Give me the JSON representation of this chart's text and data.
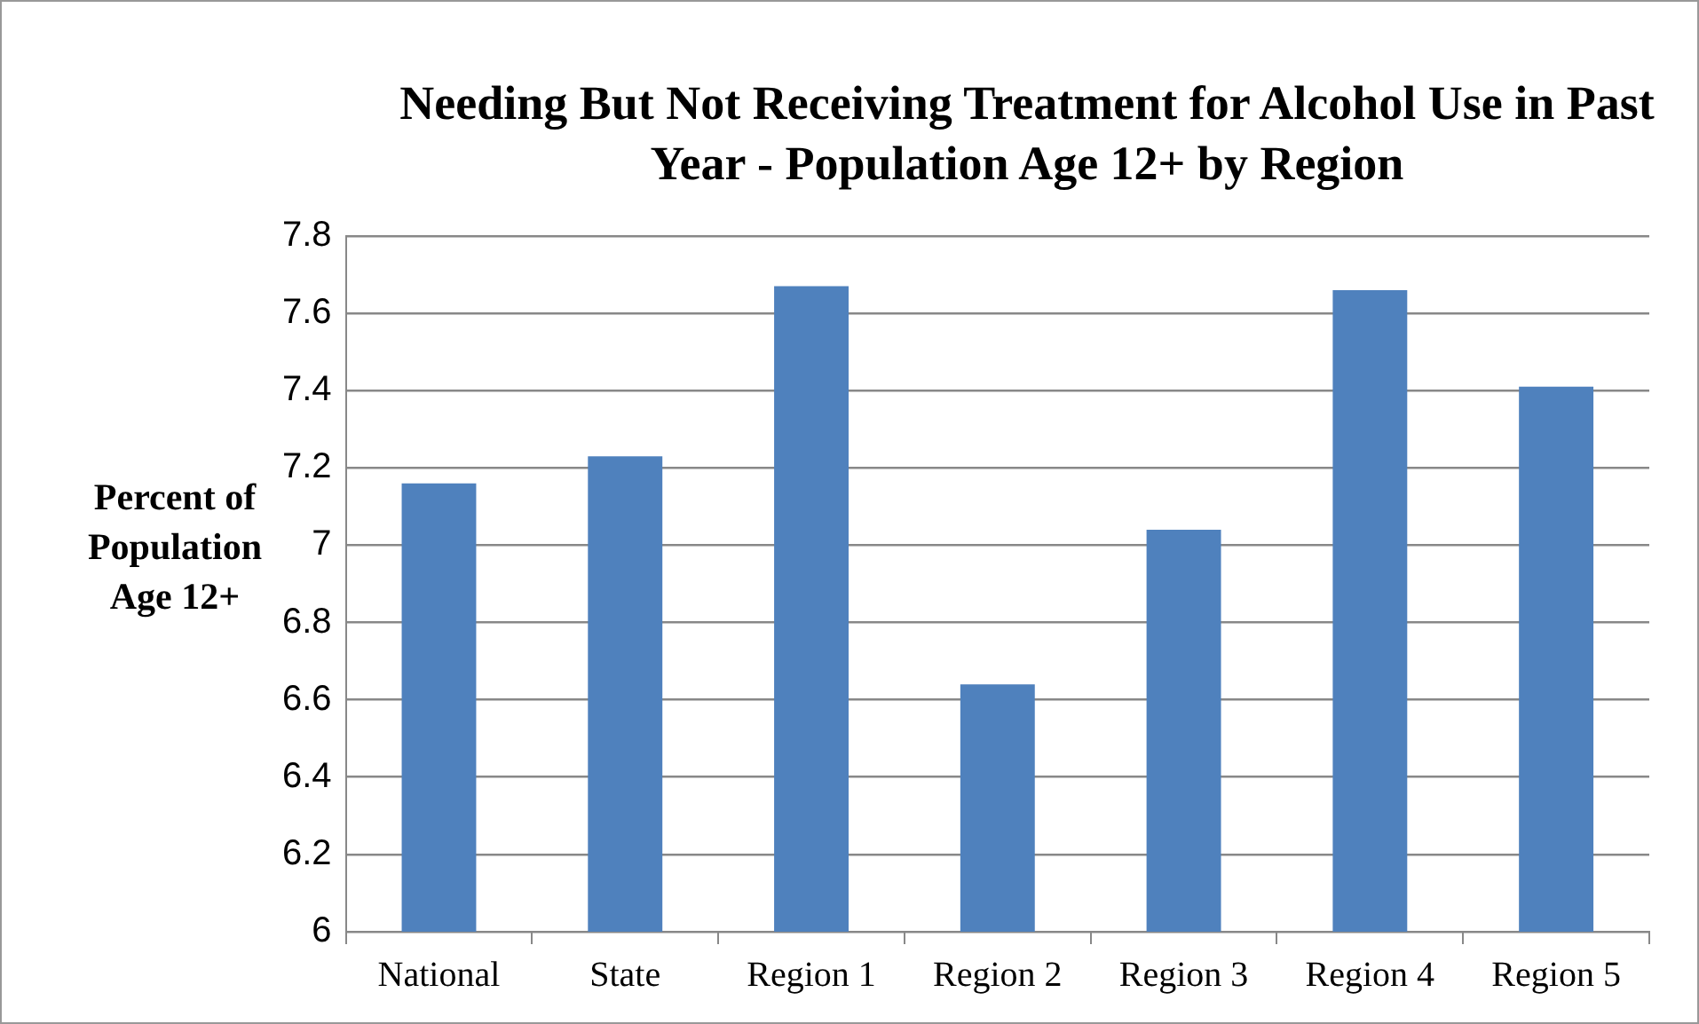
{
  "chart_data": {
    "type": "bar",
    "title": "Needing But Not Receiving Treatment for Alcohol Use in Past Year - Population Age 12+ by Region",
    "ylabel": "Percent of Population Age 12+",
    "categories": [
      "National",
      "State",
      "Region 1",
      "Region 2",
      "Region 3",
      "Region 4",
      "Region 5"
    ],
    "values": [
      7.16,
      7.23,
      7.67,
      6.64,
      7.04,
      7.66,
      7.41
    ],
    "color": "#4f81bd",
    "ylim": [
      6,
      7.8
    ],
    "yticks": [
      6,
      6.2,
      6.4,
      6.6,
      6.8,
      7,
      7.2,
      7.4,
      7.6,
      7.8
    ],
    "grid": "y",
    "legend": false
  }
}
